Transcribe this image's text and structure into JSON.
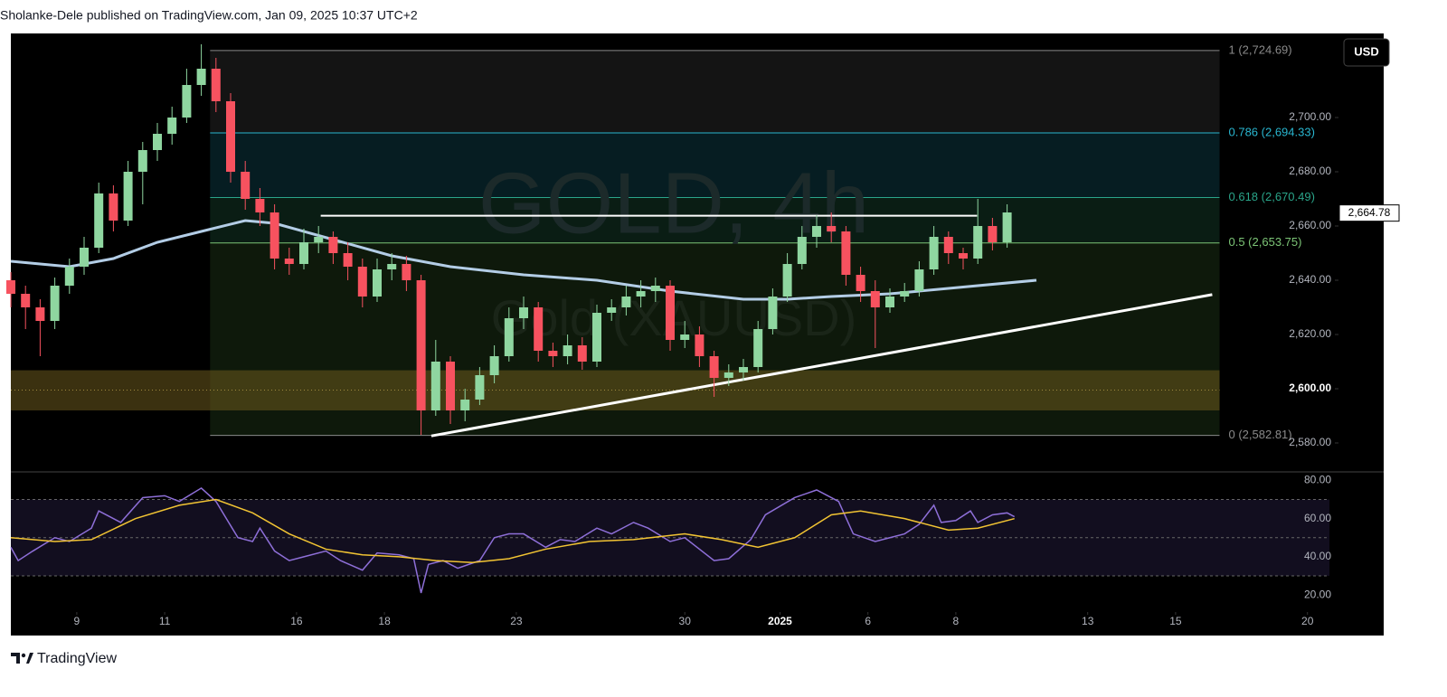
{
  "header": "Sholanke-Dele published on TradingView.com, Jan 09, 2025 10:37 UTC+2",
  "currency_button": "USD",
  "brand": "TradingView",
  "chart_data": [
    {
      "type": "candlestick",
      "title": "GOLD, 4h",
      "subtitle": "Gold (XAUUSD)",
      "up_color": "#8fd6a0",
      "down_color": "#f7525f",
      "x": [
        0,
        2,
        4,
        6,
        8,
        10,
        12,
        14,
        16,
        18,
        20,
        22,
        24,
        26,
        28,
        30,
        32,
        34,
        36,
        38,
        40,
        42,
        44,
        46,
        48,
        50,
        52,
        54,
        56,
        58,
        60,
        62,
        64,
        66,
        68,
        70,
        72,
        74,
        76,
        78,
        80,
        82,
        84,
        86,
        88,
        90,
        92,
        94,
        96,
        98,
        100,
        102,
        104,
        106,
        108,
        110,
        112,
        114,
        116,
        118,
        120,
        122,
        124,
        126,
        128,
        130,
        132,
        134,
        136
      ],
      "open": [
        2640,
        2635,
        2630,
        2625,
        2638,
        2645,
        2652,
        2672,
        2662,
        2680,
        2688,
        2694,
        2700,
        2712,
        2718,
        2706,
        2680,
        2670,
        2665,
        2648,
        2646,
        2654,
        2656,
        2650,
        2645,
        2634,
        2644,
        2646,
        2640,
        2592,
        2610,
        2592,
        2596,
        2605,
        2612,
        2626,
        2630,
        2614,
        2612,
        2616,
        2610,
        2628,
        2630,
        2634,
        2636,
        2638,
        2618,
        2620,
        2612,
        2604,
        2606,
        2608,
        2622,
        2634,
        2646,
        2656,
        2660,
        2658,
        2642,
        2636,
        2630,
        2634,
        2636,
        2644,
        2656,
        2650,
        2648,
        2660,
        2654
      ],
      "high": [
        2643,
        2638,
        2633,
        2641,
        2648,
        2656,
        2676,
        2675,
        2684,
        2691,
        2698,
        2704,
        2718,
        2727,
        2722,
        2709,
        2684,
        2674,
        2668,
        2652,
        2659,
        2660,
        2658,
        2654,
        2648,
        2648,
        2650,
        2649,
        2642,
        2618,
        2612,
        2600,
        2608,
        2616,
        2630,
        2634,
        2632,
        2617,
        2620,
        2619,
        2631,
        2633,
        2638,
        2640,
        2641,
        2640,
        2625,
        2623,
        2614,
        2609,
        2611,
        2625,
        2637,
        2650,
        2660,
        2664,
        2665,
        2660,
        2645,
        2640,
        2637,
        2639,
        2647,
        2660,
        2658,
        2652,
        2670,
        2663,
        2668
      ],
      "low": [
        2630,
        2622,
        2612,
        2622,
        2635,
        2642,
        2650,
        2658,
        2660,
        2668,
        2684,
        2690,
        2698,
        2708,
        2702,
        2676,
        2666,
        2660,
        2644,
        2642,
        2644,
        2650,
        2646,
        2640,
        2630,
        2632,
        2640,
        2636,
        2583,
        2590,
        2587,
        2588,
        2594,
        2602,
        2610,
        2622,
        2610,
        2608,
        2609,
        2607,
        2608,
        2625,
        2627,
        2630,
        2632,
        2614,
        2615,
        2608,
        2597,
        2601,
        2603,
        2606,
        2620,
        2632,
        2644,
        2652,
        2654,
        2638,
        2632,
        2615,
        2628,
        2632,
        2634,
        2642,
        2646,
        2644,
        2646,
        2651,
        2652
      ],
      "close": [
        2635,
        2630,
        2625,
        2638,
        2645,
        2652,
        2672,
        2662,
        2680,
        2688,
        2694,
        2700,
        2712,
        2718,
        2706,
        2680,
        2670,
        2665,
        2648,
        2646,
        2654,
        2656,
        2650,
        2645,
        2634,
        2644,
        2646,
        2640,
        2592,
        2610,
        2592,
        2596,
        2605,
        2612,
        2626,
        2630,
        2614,
        2612,
        2616,
        2610,
        2628,
        2630,
        2634,
        2636,
        2638,
        2618,
        2620,
        2612,
        2604,
        2606,
        2608,
        2622,
        2634,
        2646,
        2656,
        2660,
        2658,
        2642,
        2636,
        2630,
        2634,
        2636,
        2644,
        2656,
        2650,
        2648,
        2660,
        2654,
        2665
      ],
      "xlim": [
        0,
        180
      ],
      "xticks": [
        {
          "value": 9,
          "label": "9"
        },
        {
          "value": 21,
          "label": "11"
        },
        {
          "value": 39,
          "label": "16"
        },
        {
          "value": 51,
          "label": "18"
        },
        {
          "value": 69,
          "label": "23"
        },
        {
          "value": 92,
          "label": "30"
        },
        {
          "value": 105,
          "label": "2025"
        },
        {
          "value": 117,
          "label": "6"
        },
        {
          "value": 129,
          "label": "8"
        },
        {
          "value": 147,
          "label": "13"
        },
        {
          "value": 159,
          "label": "15"
        },
        {
          "value": 177,
          "label": "20"
        }
      ],
      "ylim": [
        2570,
        2731
      ],
      "yticks": [
        {
          "value": 2580,
          "label": "2,580.00"
        },
        {
          "value": 2600,
          "label": "2,600.00"
        },
        {
          "value": 2620,
          "label": "2,620.00"
        },
        {
          "value": 2640,
          "label": "2,640.00"
        },
        {
          "value": 2660,
          "label": "2,660.00"
        },
        {
          "value": 2680,
          "label": "2,680.00"
        },
        {
          "value": 2700,
          "label": "2,700.00"
        }
      ],
      "moving_average": {
        "color": "#b3cde6",
        "x": [
          0,
          8,
          14,
          20,
          26,
          32,
          36,
          44,
          52,
          60,
          70,
          80,
          90,
          100,
          106,
          112,
          120,
          128,
          140
        ],
        "values": [
          2647,
          2645,
          2648,
          2654,
          2658,
          2662,
          2661,
          2655,
          2649,
          2645,
          2642,
          2640,
          2636,
          2633,
          2633,
          2634,
          2635,
          2637,
          2640
        ]
      },
      "trend_line": {
        "color": "#ffffff",
        "x": [
          57.4,
          164
        ],
        "values": [
          2582.6,
          2634.7
        ]
      },
      "resistance_line": {
        "color": "#ffffff",
        "x": [
          42.3,
          131.9
        ],
        "values": [
          2663.8,
          2663.8
        ]
      },
      "fib_xlim": [
        27.2,
        165
      ],
      "fib_levels": [
        {
          "value": 2724.69,
          "label": "1 (2,724.69)",
          "color": "#8a8a8a",
          "fill": "#141414"
        },
        {
          "value": 2694.33,
          "label": "0.786 (2,694.33)",
          "color": "#29b6d0",
          "fill": "#061d22"
        },
        {
          "value": 2670.49,
          "label": "0.618 (2,670.49)",
          "color": "#2aa58a",
          "fill": "#0a1d14"
        },
        {
          "value": 2653.75,
          "label": "0.5 (2,653.75)",
          "color": "#7cc576",
          "fill": "#0e190b"
        },
        {
          "value": 2582.81,
          "label": "0 (2,582.81)",
          "color": "#8a8a8a"
        }
      ],
      "zone": {
        "values": [
          2592,
          2606.8
        ],
        "midline": 2599.5,
        "color": "#6b5a1e"
      },
      "last_price": {
        "value": 2664.78,
        "label": "2,664.78"
      }
    },
    {
      "type": "line",
      "ylim": [
        12,
        84
      ],
      "yticks": [
        {
          "value": 20,
          "label": "20.00"
        },
        {
          "value": 40,
          "label": "40.00"
        },
        {
          "value": 60,
          "label": "60.00"
        },
        {
          "value": 80,
          "label": "80.00"
        }
      ],
      "levels": [
        70,
        50,
        30
      ],
      "band_color": "#120e1f",
      "series": [
        {
          "color": "#8e6fd8",
          "x": [
            0,
            1,
            3,
            6,
            8,
            11,
            12,
            15,
            18,
            21,
            23,
            26,
            28,
            31,
            33,
            34,
            36,
            38,
            40,
            43,
            45,
            48,
            50,
            53,
            55,
            56,
            57,
            59,
            61,
            64,
            66,
            68,
            70,
            73,
            75,
            77,
            80,
            82,
            85,
            87,
            90,
            92,
            96,
            98,
            101,
            103,
            107,
            110,
            113,
            115,
            118,
            120,
            122,
            124,
            126,
            127,
            129,
            131,
            132,
            134,
            136,
            137
          ],
          "values": [
            45,
            38,
            43,
            50,
            48,
            55,
            64,
            58,
            71,
            72,
            69,
            76,
            69,
            50,
            48,
            55,
            43,
            38,
            40,
            43,
            38,
            33,
            42,
            41,
            39,
            21,
            36,
            38,
            34,
            38,
            50,
            52,
            52,
            45,
            49,
            48,
            55,
            52,
            58,
            55,
            48,
            50,
            38,
            39,
            49,
            62,
            71,
            75,
            69,
            52,
            48,
            50,
            52,
            57,
            67,
            58,
            59,
            64,
            58,
            62,
            63,
            61
          ]
        },
        {
          "color": "#f2c433",
          "x": [
            0,
            6,
            11,
            17,
            23,
            28,
            33,
            38,
            43,
            48,
            53,
            58,
            63,
            68,
            73,
            79,
            85,
            92,
            97,
            102,
            107,
            112,
            116,
            122,
            128,
            132,
            137
          ],
          "values": [
            50,
            48,
            49,
            60,
            67,
            70,
            63,
            52,
            44,
            41,
            40,
            38,
            37,
            39,
            44,
            48,
            49,
            52,
            49,
            45,
            50,
            62,
            64,
            60,
            54,
            55,
            60
          ]
        }
      ]
    }
  ]
}
